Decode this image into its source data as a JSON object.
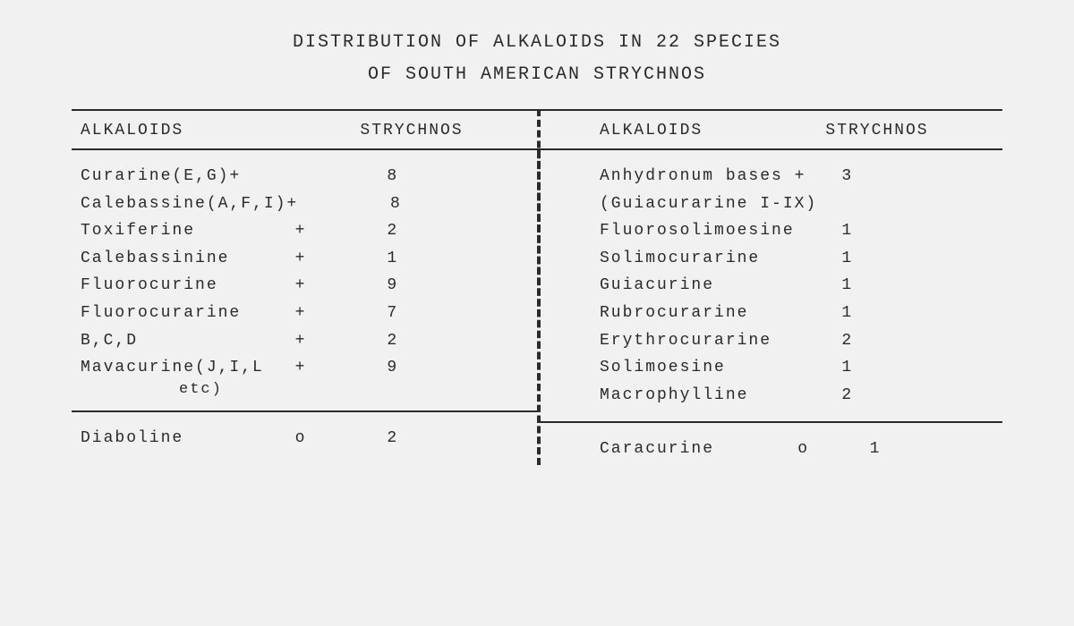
{
  "title_line1": "DISTRIBUTION OF ALKALOIDS IN 22 SPECIES",
  "title_line2": "OF SOUTH AMERICAN STRYCHNOS",
  "headers": {
    "alkaloids": "ALKALOIDS",
    "strychnos": "STRYCHNOS"
  },
  "left": {
    "rows": [
      {
        "name": "Curarine(E,G)+",
        "mark": "",
        "val": "8"
      },
      {
        "name": "Calebassine(A,F,I)+",
        "mark": "",
        "val": "8"
      },
      {
        "name": "Toxiferine",
        "mark": "+",
        "val": "2"
      },
      {
        "name": "Calebassinine",
        "mark": "+",
        "val": "1"
      },
      {
        "name": "Fluorocurine",
        "mark": "+",
        "val": "9"
      },
      {
        "name": "Fluorocurarine",
        "mark": "+",
        "val": "7"
      },
      {
        "name": "B,C,D",
        "mark": "+",
        "val": "2"
      },
      {
        "name": "Mavacurine(J,I,L",
        "mark": "+",
        "val": "9"
      }
    ],
    "sub": "etc)",
    "lower": [
      {
        "name": "Diaboline",
        "mark": "o",
        "val": "2"
      }
    ]
  },
  "right": {
    "rows": [
      {
        "name": "Anhydronum bases +",
        "mark": "",
        "val": "3"
      },
      {
        "name": "(Guiacurarine I-IX)",
        "mark": "",
        "val": ""
      },
      {
        "name": "Fluorosolimoesine",
        "mark": "",
        "val": "1"
      },
      {
        "name": "Solimocurarine",
        "mark": "",
        "val": "1"
      },
      {
        "name": "Guiacurine",
        "mark": "",
        "val": "1"
      },
      {
        "name": "Rubrocurarine",
        "mark": "",
        "val": "1"
      },
      {
        "name": "Erythrocurarine",
        "mark": "",
        "val": "2"
      },
      {
        "name": "Solimoesine",
        "mark": "",
        "val": "1"
      },
      {
        "name": "Macrophylline",
        "mark": "",
        "val": "2"
      }
    ],
    "lower": [
      {
        "name": "Caracurine",
        "mark": "o",
        "val": "1"
      }
    ]
  },
  "style": {
    "background_color": "#f2f1f1",
    "text_color": "#2a2a2a",
    "font_family": "Courier, monospace",
    "title_fontsize_pt": 15,
    "body_fontsize_pt": 14,
    "rule_color": "#2a2a2a",
    "divider_style": "dashed"
  }
}
